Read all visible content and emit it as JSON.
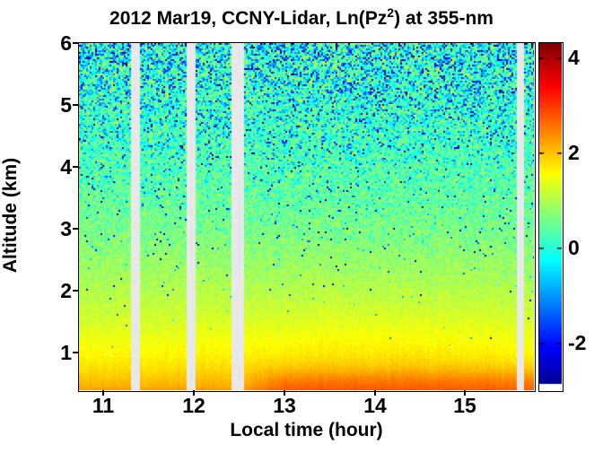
{
  "figure": {
    "title_part1": "2012 Mar19, CCNY-Lidar, Ln(Pz",
    "title_sup": "2",
    "title_part2": ") at 355-nm"
  },
  "chart_data": {
    "type": "heatmap",
    "title": "2012 Mar19, CCNY-Lidar, Ln(Pz^2) at 355-nm",
    "xlabel": "Local time (hour)",
    "ylabel": "Altitude (km)",
    "x_range": [
      10.73,
      15.76
    ],
    "y_range": [
      0.4,
      6
    ],
    "x_ticks": [
      11,
      12,
      13,
      14,
      15
    ],
    "y_ticks": [
      6,
      5,
      4,
      3,
      2,
      1
    ],
    "color_scale": {
      "min": -3,
      "max": 4.3,
      "ticks": [
        4,
        2,
        0,
        -2
      ],
      "colormap": "jet"
    },
    "data_gaps_hours": [
      [
        11.3,
        11.4
      ],
      [
        11.91,
        12.01
      ],
      [
        12.42,
        12.55
      ],
      [
        15.56,
        15.65
      ]
    ],
    "gap_color": "#e8e8e8",
    "altitude_profile": {
      "altitudes_km": [
        0.4,
        0.5,
        0.75,
        1.0,
        1.5,
        2.0,
        2.5,
        3.0,
        3.5,
        4.0,
        4.5,
        5.0,
        5.5,
        6.0
      ],
      "mean_ln_pz2": [
        2.3,
        2.1,
        1.8,
        1.6,
        1.3,
        1.05,
        0.85,
        0.65,
        0.5,
        0.35,
        0.25,
        0.15,
        0.08,
        0.0
      ]
    },
    "surface_layer": {
      "altitude_km": 0.48,
      "enhanced_after_hour": 12.5,
      "boost": 0.45
    },
    "afternoon_enhancement": {
      "center_hour": 14,
      "center_km": 1.0,
      "amplitude": 0.12
    },
    "texture": {
      "noise_base": 0.05,
      "noise_top": 1.15,
      "noise_exponent": 1.9,
      "positive_noise_damping": 0.55,
      "speckle_rate": 0.09,
      "speckle_depth": 2.6,
      "column_jitter": 0.1
    }
  }
}
